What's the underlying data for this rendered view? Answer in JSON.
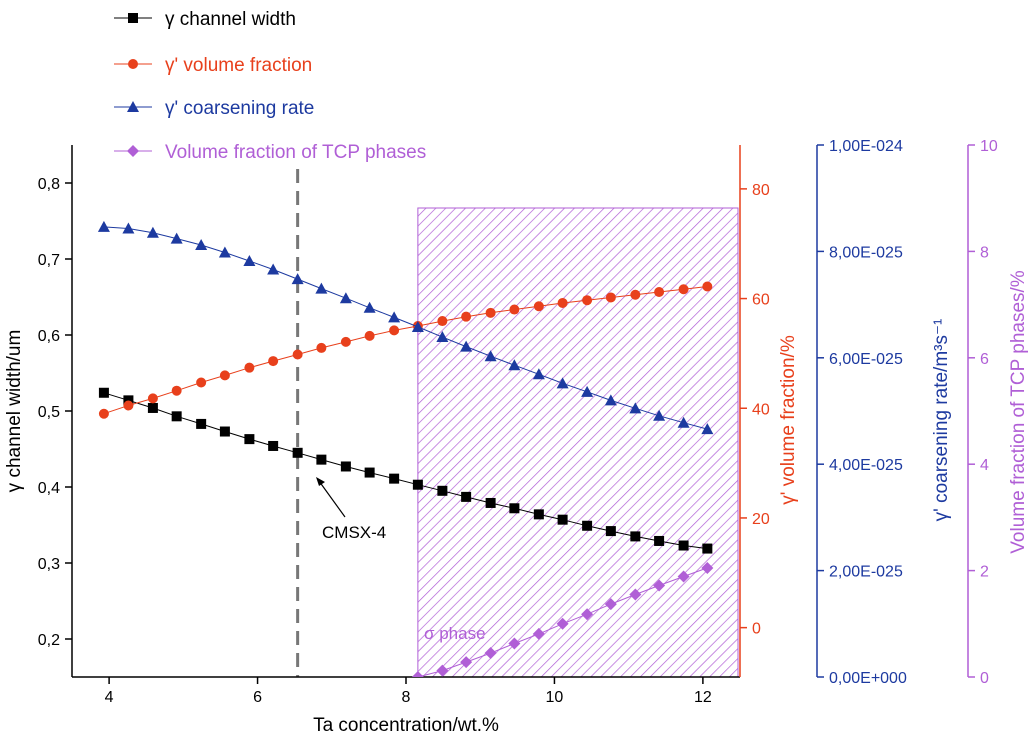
{
  "chart_data": {
    "type": "scatter",
    "xlabel": "Ta concentration/wt.%",
    "xlim": [
      3.5,
      12.5
    ],
    "xticks": [
      "4",
      "6",
      "8",
      "10",
      "12"
    ],
    "x": [
      3.93,
      4.26,
      4.59,
      4.91,
      5.24,
      5.56,
      5.89,
      6.21,
      6.54,
      6.86,
      7.19,
      7.51,
      7.84,
      8.16,
      8.49,
      8.81,
      9.14,
      9.46,
      9.79,
      10.11,
      10.44,
      10.76,
      11.09,
      11.41,
      11.74,
      12.06
    ],
    "axes": {
      "left": {
        "label": "γ channel width/um",
        "ylim": [
          0.15,
          0.85
        ],
        "ticks": [
          "0,2",
          "0,3",
          "0,4",
          "0,5",
          "0,6",
          "0,7",
          "0,8"
        ],
        "color": "#000000"
      },
      "vol": {
        "label": "γ' volume fraction/%",
        "ylim": [
          -9,
          88
        ],
        "ticks": [
          "0",
          "20",
          "40",
          "60",
          "80"
        ],
        "color": "#e8401c"
      },
      "rate": {
        "label": "γ' coarsening rate/m³s⁻¹",
        "ylim": [
          0,
          1e-24
        ],
        "ticks": [
          "0,00E+000",
          "2,00E-025",
          "4,00E-025",
          "6,00E-025",
          "8,00E-025",
          "1,00E-024"
        ],
        "color": "#1d3aa0"
      },
      "tcp": {
        "label": "Volume fraction of TCP phases/%",
        "ylim": [
          0,
          10
        ],
        "ticks": [
          "0",
          "2",
          "4",
          "6",
          "8",
          "10"
        ],
        "color": "#b05fd6"
      }
    },
    "series": [
      {
        "name": "γ channel width",
        "axis": "left",
        "color": "#000000",
        "marker": "square",
        "y": [
          0.524,
          0.514,
          0.504,
          0.493,
          0.483,
          0.473,
          0.463,
          0.454,
          0.445,
          0.436,
          0.427,
          0.419,
          0.411,
          0.403,
          0.395,
          0.387,
          0.379,
          0.372,
          0.364,
          0.357,
          0.349,
          0.342,
          0.335,
          0.329,
          0.323,
          0.319
        ]
      },
      {
        "name": "γ' volume fraction",
        "axis": "vol",
        "color": "#e8401c",
        "marker": "circle",
        "y": [
          39,
          40.5,
          41.8,
          43.2,
          44.7,
          46,
          47.4,
          48.6,
          49.8,
          51,
          52.1,
          53.2,
          54.2,
          55,
          55.9,
          56.7,
          57.4,
          58,
          58.6,
          59.2,
          59.7,
          60.2,
          60.7,
          61.2,
          61.7,
          62.2
        ]
      },
      {
        "name": "γ' coarsening rate",
        "axis": "rate",
        "color": "#1d3aa0",
        "marker": "triangle",
        "y": [
          8.46e-25,
          8.43e-25,
          8.35e-25,
          8.24e-25,
          8.12e-25,
          7.98e-25,
          7.82e-25,
          7.66e-25,
          7.48e-25,
          7.3e-25,
          7.12e-25,
          6.94e-25,
          6.76e-25,
          6.58e-25,
          6.39e-25,
          6.21e-25,
          6.03e-25,
          5.86e-25,
          5.69e-25,
          5.52e-25,
          5.36e-25,
          5.2e-25,
          5.05e-25,
          4.91e-25,
          4.78e-25,
          4.66e-25
        ]
      },
      {
        "name": "Volume fraction of TCP phases",
        "axis": "tcp",
        "color": "#b05fd6",
        "marker": "diamond",
        "x": [
          8.16,
          8.49,
          8.81,
          9.14,
          9.46,
          9.79,
          10.11,
          10.44,
          10.76,
          11.09,
          11.41,
          11.74,
          12.06
        ],
        "y": [
          0,
          0.12,
          0.28,
          0.45,
          0.63,
          0.81,
          1.0,
          1.18,
          1.37,
          1.55,
          1.72,
          1.89,
          2.05
        ]
      }
    ],
    "shaded_region": {
      "x": [
        8.16,
        12.5
      ],
      "label": "σ phase",
      "color": "#b05fd6"
    },
    "reference_line": {
      "x": 6.54,
      "label": "CMSX-4",
      "style": "dashed",
      "color": "#777777"
    },
    "legend": {
      "placement": "top-left"
    }
  }
}
